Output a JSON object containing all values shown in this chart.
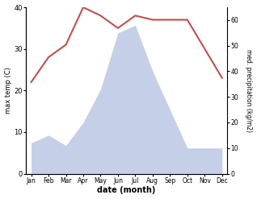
{
  "months": [
    "Jan",
    "Feb",
    "Mar",
    "Apr",
    "May",
    "Jun",
    "Jul",
    "Aug",
    "Sep",
    "Oct",
    "Nov",
    "Dec"
  ],
  "temp_max": [
    22,
    28,
    31,
    40,
    38,
    35,
    38,
    37,
    37,
    37,
    30,
    23
  ],
  "precipitation": [
    12,
    15,
    11,
    20,
    33,
    55,
    58,
    40,
    25,
    10,
    10,
    10
  ],
  "temp_color": "#c0504d",
  "precip_fill_color": "#c5cfe8",
  "xlabel": "date (month)",
  "ylabel_left": "max temp (C)",
  "ylabel_right": "med. precipitation (kg/m2)",
  "ylim_left": [
    0,
    40
  ],
  "ylim_right": [
    0,
    65
  ],
  "yticks_left": [
    0,
    10,
    20,
    30,
    40
  ],
  "yticks_right": [
    0,
    10,
    20,
    30,
    40,
    50,
    60
  ]
}
